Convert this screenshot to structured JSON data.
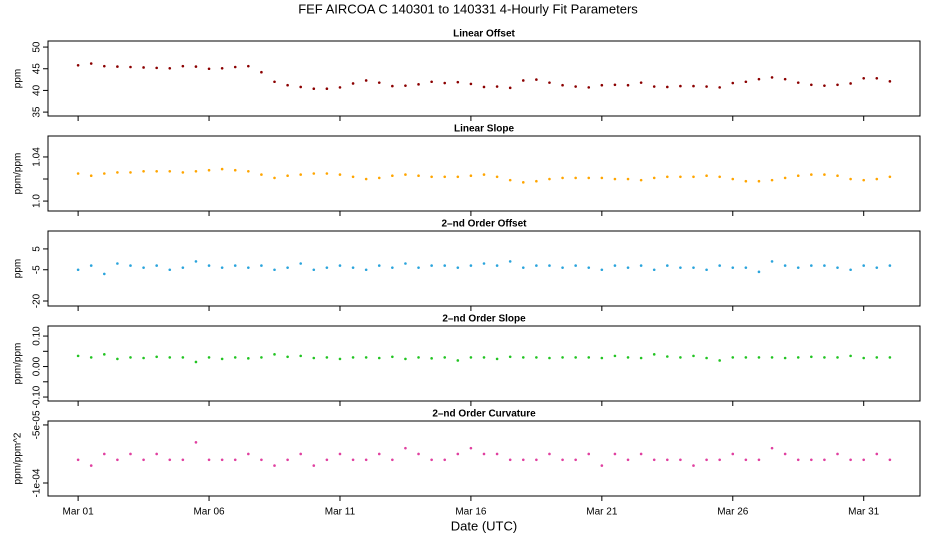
{
  "title": "FEF   AIRCOA C   140301 to 140331   4-Hourly Fit Parameters",
  "chart_data": [
    {
      "type": "scatter",
      "title": "Linear Offset",
      "ylabel": "ppm",
      "color": "#8b0000",
      "x": [
        1,
        1.5,
        2,
        2.5,
        3,
        3.5,
        4,
        4.5,
        5,
        5.5,
        6,
        6.5,
        7,
        7.5,
        8,
        8.5,
        9,
        9.5,
        10,
        10.5,
        11,
        11.5,
        12,
        12.5,
        13,
        13.5,
        14,
        14.5,
        15,
        15.5,
        16,
        16.5,
        17,
        17.5,
        18,
        18.5,
        19,
        19.5,
        20,
        20.5,
        21,
        21.5,
        22,
        22.5,
        23,
        23.5,
        24,
        24.5,
        25,
        25.5,
        26,
        26.5,
        27,
        27.5,
        28,
        28.5,
        29,
        29.5,
        30,
        30.5,
        31,
        31.5,
        32
      ],
      "values": [
        45.8,
        46.2,
        45.6,
        45.5,
        45.4,
        45.3,
        45.2,
        45.1,
        45.6,
        45.5,
        45.0,
        45.1,
        45.4,
        45.6,
        44.2,
        42.0,
        41.2,
        40.8,
        40.4,
        40.4,
        40.7,
        41.6,
        42.3,
        41.8,
        41.0,
        41.1,
        41.4,
        42.0,
        41.7,
        41.9,
        41.5,
        40.8,
        40.9,
        40.6,
        42.3,
        42.5,
        41.8,
        41.2,
        40.9,
        40.7,
        41.2,
        41.3,
        41.2,
        41.8,
        40.9,
        40.8,
        41.0,
        41.0,
        40.9,
        40.7,
        41.7,
        42.0,
        42.6,
        43.0,
        42.6,
        41.8,
        41.3,
        41.1,
        41.3,
        41.6,
        42.8,
        42.8,
        42.1
      ],
      "xlim": [
        -0.15,
        33.15
      ],
      "ylim": [
        34.1,
        51.4
      ],
      "yticks": [
        35,
        40,
        45,
        50
      ]
    },
    {
      "type": "scatter",
      "title": "Linear Slope",
      "ylabel": "ppm/ppm",
      "color": "#ffa500",
      "x": [
        1,
        1.5,
        2,
        2.5,
        3,
        3.5,
        4,
        4.5,
        5,
        5.5,
        6,
        6.5,
        7,
        7.5,
        8,
        8.5,
        9,
        9.5,
        10,
        10.5,
        11,
        11.5,
        12,
        12.5,
        13,
        13.5,
        14,
        14.5,
        15,
        15.5,
        16,
        16.5,
        17,
        17.5,
        18,
        18.5,
        19,
        19.5,
        20,
        20.5,
        21,
        21.5,
        22,
        22.5,
        23,
        23.5,
        24,
        24.5,
        25,
        25.5,
        26,
        26.5,
        27,
        27.5,
        28,
        28.5,
        29,
        29.5,
        30,
        30.5,
        31,
        31.5,
        32
      ],
      "values": [
        1.025,
        1.023,
        1.025,
        1.026,
        1.026,
        1.027,
        1.027,
        1.027,
        1.026,
        1.027,
        1.028,
        1.029,
        1.028,
        1.027,
        1.024,
        1.021,
        1.023,
        1.024,
        1.025,
        1.025,
        1.024,
        1.022,
        1.02,
        1.021,
        1.023,
        1.024,
        1.023,
        1.022,
        1.022,
        1.022,
        1.023,
        1.024,
        1.022,
        1.019,
        1.017,
        1.018,
        1.02,
        1.021,
        1.021,
        1.021,
        1.021,
        1.02,
        1.02,
        1.019,
        1.021,
        1.022,
        1.022,
        1.022,
        1.023,
        1.022,
        1.02,
        1.018,
        1.018,
        1.019,
        1.021,
        1.023,
        1.024,
        1.024,
        1.023,
        1.02,
        1.019,
        1.02,
        1.022
      ],
      "xlim": [
        -0.15,
        33.15
      ],
      "ylim": [
        0.991,
        1.059
      ],
      "yticks": [
        {
          "value": 1,
          "label": "1.0"
        },
        {
          "value": 1.02,
          "label": null
        },
        1.04
      ]
    },
    {
      "type": "scatter",
      "title": "2–nd Order Offset",
      "ylabel": "ppm",
      "color": "#2aa4dc",
      "x": [
        1,
        1.5,
        2,
        2.5,
        3,
        3.5,
        4,
        4.5,
        5,
        5.5,
        6,
        6.5,
        7,
        7.5,
        8,
        8.5,
        9,
        9.5,
        10,
        10.5,
        11,
        11.5,
        12,
        12.5,
        13,
        13.5,
        14,
        14.5,
        15,
        15.5,
        16,
        16.5,
        17,
        17.5,
        18,
        18.5,
        19,
        19.5,
        20,
        20.5,
        21,
        21.5,
        22,
        22.5,
        23,
        23.5,
        24,
        24.5,
        25,
        25.5,
        26,
        26.5,
        27,
        27.5,
        28,
        28.5,
        29,
        29.5,
        30,
        30.5,
        31,
        31.5,
        32
      ],
      "values": [
        -5,
        -3,
        -7,
        -2,
        -3,
        -4,
        -3,
        -5,
        -4,
        -1,
        -3,
        -4,
        -3,
        -4,
        -3,
        -5,
        -4,
        -2,
        -5,
        -4,
        -3,
        -4,
        -5,
        -3,
        -4,
        -2,
        -4,
        -3,
        -3,
        -4,
        -3,
        -2,
        -3,
        -1,
        -4,
        -3,
        -3,
        -4,
        -3,
        -4,
        -5,
        -3,
        -4,
        -3,
        -5,
        -3,
        -4,
        -4,
        -5,
        -3,
        -4,
        -4,
        -6,
        -1,
        -3,
        -4,
        -3,
        -3,
        -4,
        -5,
        -3,
        -4,
        -3
      ],
      "xlim": [
        -0.15,
        33.15
      ],
      "ylim": [
        -22.4,
        13.6
      ],
      "yticks": [
        -20,
        -5,
        5
      ]
    },
    {
      "type": "scatter",
      "title": "2–nd Order Slope",
      "ylabel": "ppm/ppm",
      "color": "#22c422",
      "x": [
        1,
        1.5,
        2,
        2.5,
        3,
        3.5,
        4,
        4.5,
        5,
        5.5,
        6,
        6.5,
        7,
        7.5,
        8,
        8.5,
        9,
        9.5,
        10,
        10.5,
        11,
        11.5,
        12,
        12.5,
        13,
        13.5,
        14,
        14.5,
        15,
        15.5,
        16,
        16.5,
        17,
        17.5,
        18,
        18.5,
        19,
        19.5,
        20,
        20.5,
        21,
        21.5,
        22,
        22.5,
        23,
        23.5,
        24,
        24.5,
        25,
        25.5,
        26,
        26.5,
        27,
        27.5,
        28,
        28.5,
        29,
        29.5,
        30,
        30.5,
        31,
        31.5,
        32
      ],
      "values": [
        0.035,
        0.03,
        0.04,
        0.025,
        0.03,
        0.028,
        0.032,
        0.03,
        0.03,
        0.015,
        0.03,
        0.025,
        0.03,
        0.027,
        0.03,
        0.04,
        0.032,
        0.035,
        0.028,
        0.03,
        0.025,
        0.03,
        0.03,
        0.028,
        0.032,
        0.025,
        0.03,
        0.027,
        0.03,
        0.02,
        0.03,
        0.03,
        0.025,
        0.032,
        0.03,
        0.03,
        0.028,
        0.03,
        0.03,
        0.03,
        0.028,
        0.035,
        0.03,
        0.028,
        0.04,
        0.033,
        0.03,
        0.035,
        0.028,
        0.02,
        0.03,
        0.03,
        0.03,
        0.03,
        0.028,
        0.03,
        0.032,
        0.03,
        0.03,
        0.035,
        0.028,
        0.03,
        0.03
      ],
      "xlim": [
        -0.15,
        33.15
      ],
      "ylim": [
        -0.113,
        0.133
      ],
      "yticks": [
        {
          "value": -0.1,
          "label": "-0.10"
        },
        {
          "value": -0.05,
          "label": null
        },
        {
          "value": 0,
          "label": "0.00"
        },
        {
          "value": 0.05,
          "label": null
        },
        {
          "value": 0.1,
          "label": "0.10"
        }
      ]
    },
    {
      "type": "scatter",
      "title": "2–nd Order Curvature",
      "ylabel": "ppm/ppm^2",
      "xlabel": "Date (UTC)",
      "color": "#e040a0",
      "x": [
        1,
        1.5,
        2,
        2.5,
        3,
        3.5,
        4,
        4.5,
        5,
        5.5,
        6,
        6.5,
        7,
        7.5,
        8,
        8.5,
        9,
        9.5,
        10,
        10.5,
        11,
        11.5,
        12,
        12.5,
        13,
        13.5,
        14,
        14.5,
        15,
        15.5,
        16,
        16.5,
        17,
        17.5,
        18,
        18.5,
        19,
        19.5,
        20,
        20.5,
        21,
        21.5,
        22,
        22.5,
        23,
        23.5,
        24,
        24.5,
        25,
        25.5,
        26,
        26.5,
        27,
        27.5,
        28,
        28.5,
        29,
        29.5,
        30,
        30.5,
        31,
        31.5,
        32
      ],
      "values": [
        -8e-05,
        -8.5e-05,
        -7.5e-05,
        -8e-05,
        -7.5e-05,
        -8e-05,
        -7.5e-05,
        -8e-05,
        -8e-05,
        -6.5e-05,
        -8e-05,
        -8e-05,
        -8e-05,
        -7.5e-05,
        -8e-05,
        -8.5e-05,
        -8e-05,
        -7.5e-05,
        -8.5e-05,
        -8e-05,
        -7.5e-05,
        -8e-05,
        -8e-05,
        -7.5e-05,
        -8e-05,
        -7e-05,
        -7.5e-05,
        -8e-05,
        -8e-05,
        -7.5e-05,
        -7e-05,
        -7.5e-05,
        -7.5e-05,
        -8e-05,
        -8e-05,
        -8e-05,
        -7.5e-05,
        -8e-05,
        -8e-05,
        -7.5e-05,
        -8.5e-05,
        -7.5e-05,
        -8e-05,
        -7.5e-05,
        -8e-05,
        -8e-05,
        -8e-05,
        -8.5e-05,
        -8e-05,
        -8e-05,
        -7.5e-05,
        -8e-05,
        -8e-05,
        -7e-05,
        -7.5e-05,
        -8e-05,
        -8e-05,
        -8e-05,
        -7.5e-05,
        -8e-05,
        -8e-05,
        -7.5e-05,
        -8e-05
      ],
      "xlim": [
        -0.15,
        33.15
      ],
      "ylim": [
        -0.0001112,
        -4.66e-05
      ],
      "yticks": [
        {
          "value": -0.0001,
          "label": "-1e-04"
        },
        {
          "value": -5e-05,
          "label": "-5e-05"
        }
      ],
      "xticks": [
        {
          "value": 1,
          "label": "Mar 01"
        },
        {
          "value": 6,
          "label": "Mar 06"
        },
        {
          "value": 11,
          "label": "Mar 11"
        },
        {
          "value": 16,
          "label": "Mar 16"
        },
        {
          "value": 21,
          "label": "Mar 21"
        },
        {
          "value": 26,
          "label": "Mar 26"
        },
        {
          "value": 31,
          "label": "Mar 31"
        }
      ]
    }
  ]
}
